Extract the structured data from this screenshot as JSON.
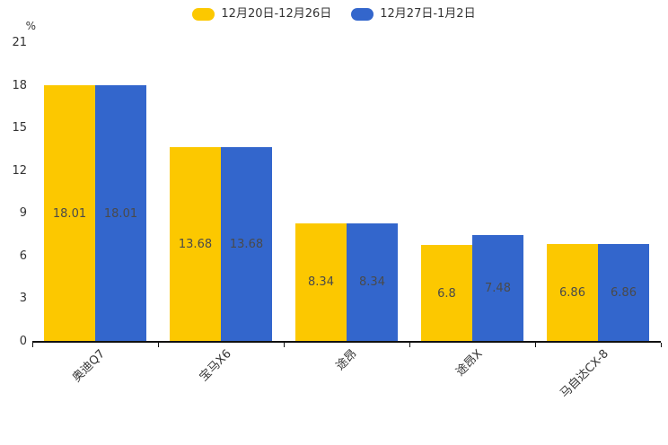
{
  "chart_data": {
    "type": "bar",
    "title": "",
    "xlabel": "",
    "ylabel": "%",
    "ylim": [
      0,
      21
    ],
    "ytick_step": 3,
    "grid": false,
    "legend_position": "top-center",
    "value_labels": "inside-center",
    "categories": [
      "奥迪Q7",
      "宝马X6",
      "途昂",
      "途昂X",
      "马自达CX-8"
    ],
    "series": [
      {
        "name": "12月20日-12月26日",
        "color": "#FCC800",
        "values": [
          18.01,
          13.68,
          8.34,
          6.8,
          6.86
        ]
      },
      {
        "name": "12月27日-1月2日",
        "color": "#3366CC",
        "values": [
          18.01,
          13.68,
          8.34,
          7.48,
          6.86
        ]
      }
    ],
    "colors": {
      "axis": "#111111",
      "label_text": "#4a4a4a",
      "tick_text": "#333333"
    }
  }
}
